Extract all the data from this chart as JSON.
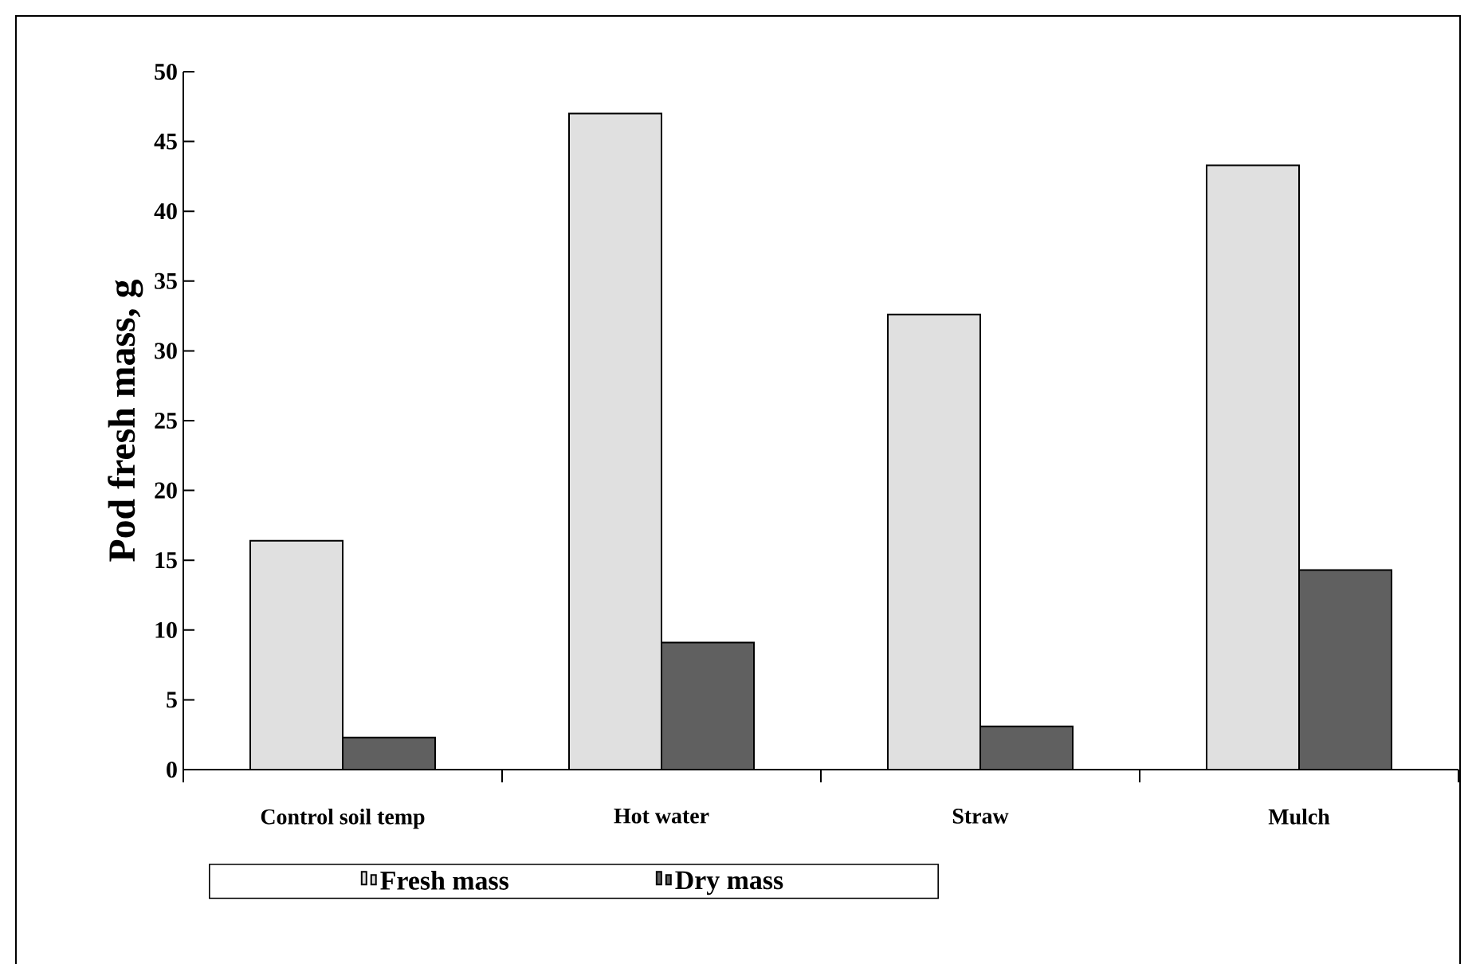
{
  "chart_data": {
    "type": "bar",
    "ylabel": "Pod fresh mass, g",
    "categories": [
      "Control soil temp",
      "Hot water",
      "Straw",
      "Mulch"
    ],
    "series": [
      {
        "name": "Fresh mass",
        "color": "#e0e0e0",
        "values": [
          16.4,
          47.0,
          32.6,
          43.3
        ]
      },
      {
        "name": "Dry mass",
        "color": "#606060",
        "values": [
          2.3,
          9.1,
          3.1,
          14.3
        ]
      }
    ],
    "ylim": [
      0,
      50
    ],
    "yticks": [
      0,
      5,
      10,
      15,
      20,
      25,
      30,
      35,
      40,
      45,
      50
    ],
    "grid": false,
    "legend": "bottom"
  }
}
